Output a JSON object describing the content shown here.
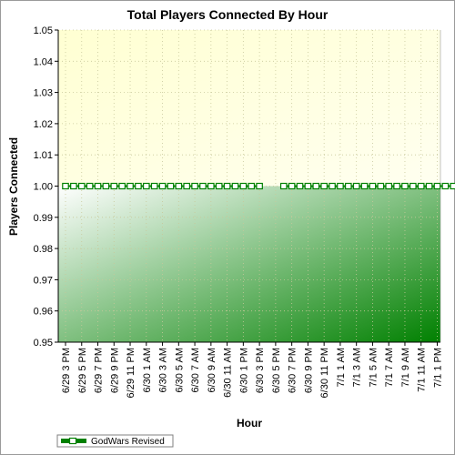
{
  "chart_data": {
    "type": "line",
    "title": "Total Players Connected By Hour",
    "xlabel": "Hour",
    "ylabel": "Players Connected",
    "ylim": [
      0.95,
      1.05
    ],
    "yticks": [
      "0.95",
      "0.96",
      "0.97",
      "0.98",
      "0.99",
      "1.00",
      "1.01",
      "1.02",
      "1.03",
      "1.04",
      "1.05"
    ],
    "yticks_values": [
      0.95,
      0.96,
      0.97,
      0.98,
      0.99,
      1.0,
      1.01,
      1.02,
      1.03,
      1.04,
      1.05
    ],
    "categories": [
      "6/29 3 PM",
      "6/29 5 PM",
      "6/29 7 PM",
      "6/29 9 PM",
      "6/29 11 PM",
      "6/30 1 AM",
      "6/30 3 AM",
      "6/30 5 AM",
      "6/30 7 AM",
      "6/30 9 AM",
      "6/30 11 AM",
      "6/30 1 PM",
      "6/30 3 PM",
      "6/30 5 PM",
      "6/30 7 PM",
      "6/30 9 PM",
      "6/30 11 PM",
      "7/1 1 AM",
      "7/1 3 AM",
      "7/1 5 AM",
      "7/1 7 AM",
      "7/1 9 AM",
      "7/1 11 AM",
      "7/1 1 PM"
    ],
    "grid": true,
    "legend_position": "bottom-left",
    "series": [
      {
        "name": "GodWars Revised",
        "color": "#008000",
        "segments": [
          {
            "x_start": 0,
            "values": [
              1,
              1,
              1,
              1,
              1,
              1,
              1,
              1,
              1,
              1,
              1,
              1,
              1,
              1,
              1,
              1,
              1,
              1,
              1,
              1,
              1,
              1,
              1,
              1,
              1
            ]
          },
          {
            "x_start": 27,
            "values": [
              1,
              1,
              1,
              1,
              1,
              1,
              1,
              1,
              1,
              1,
              1,
              1,
              1,
              1,
              1,
              1,
              1,
              1,
              1,
              1,
              1,
              1,
              1,
              1,
              1,
              1,
              1,
              1,
              1
            ]
          },
          {
            "x_start": 52,
            "values": [
              1,
              1,
              1,
              1,
              1,
              1,
              1,
              1,
              1,
              1,
              1,
              1,
              1,
              1,
              1,
              1,
              1,
              1,
              1,
              1,
              1,
              1,
              1,
              1,
              1,
              1,
              1,
              1,
              1,
              1,
              1,
              1,
              1,
              1,
              1,
              1,
              1,
              1
            ]
          }
        ]
      }
    ],
    "colors": {
      "plot_fill_top": "#ffffd8",
      "plot_fill_bottom_left": "#ffffff",
      "plot_fill_bottom_right": "#008000",
      "grid": "#c9c9a0",
      "series": "#008000"
    }
  }
}
